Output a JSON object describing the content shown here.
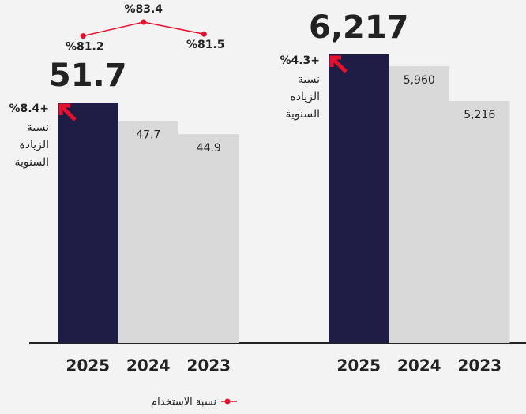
{
  "chart_data": [
    {
      "type": "bar",
      "categories": [
        "2025",
        "2024",
        "2023"
      ],
      "values": [
        51.7,
        47.7,
        44.9
      ],
      "colors": [
        "#1f1d45",
        "#d9d9d9",
        "#d9d9d9"
      ],
      "annotation": {
        "label": "%8.4+",
        "note": [
          "نسبة",
          "الزيادة",
          "السنوية"
        ]
      }
    },
    {
      "type": "bar",
      "categories": [
        "2025",
        "2024",
        "2023"
      ],
      "values": [
        6217,
        5960,
        5216
      ],
      "value_labels": [
        "6,217",
        "5,960",
        "5,216"
      ],
      "colors": [
        "#1f1d45",
        "#d9d9d9",
        "#d9d9d9"
      ],
      "annotation": {
        "label": "%4.3+",
        "note": [
          "نسبة",
          "الزيادة",
          "السنوية"
        ]
      }
    },
    {
      "type": "line",
      "series": [
        {
          "name": "نسبة الاستخدام",
          "color": "#e8112d",
          "values": [
            81.2,
            83.4,
            81.5
          ]
        }
      ],
      "value_labels": [
        "%81.2",
        "%83.4",
        "%81.5"
      ]
    }
  ]
}
